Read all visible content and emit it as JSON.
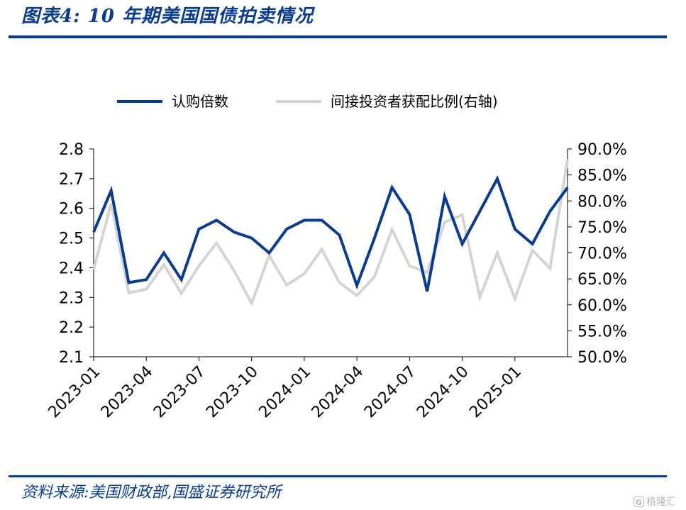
{
  "header": {
    "title": "图表4:  10 年期美国国债拍卖情况"
  },
  "footer": {
    "source": "资料来源:美国财政部,国盛证券研究所",
    "watermark": "格隆汇"
  },
  "colors": {
    "brand": "#0b3c8c",
    "series1": "#0b3c8c",
    "series2": "#d4d4d4"
  },
  "chart_data": {
    "type": "line",
    "x": [
      "2023-01",
      "2023-02",
      "2023-03",
      "2023-04",
      "2023-05",
      "2023-06",
      "2023-07",
      "2023-08",
      "2023-09",
      "2023-10",
      "2023-11",
      "2023-12",
      "2024-01",
      "2024-02",
      "2024-03",
      "2024-04",
      "2024-05",
      "2024-06",
      "2024-07",
      "2024-08",
      "2024-09",
      "2024-10",
      "2024-11",
      "2024-12",
      "2025-01",
      "2025-02",
      "2025-03",
      "2025-04"
    ],
    "xtick_labels": [
      "2023-01",
      "2023-04",
      "2023-07",
      "2023-10",
      "2024-01",
      "2024-04",
      "2024-07",
      "2024-10",
      "2025-01"
    ],
    "series": [
      {
        "name": "认购倍数",
        "axis": "left",
        "values": [
          2.52,
          2.66,
          2.35,
          2.36,
          2.45,
          2.36,
          2.53,
          2.56,
          2.52,
          2.5,
          2.45,
          2.53,
          2.56,
          2.56,
          2.51,
          2.34,
          2.5,
          2.67,
          2.58,
          2.32,
          2.64,
          2.48,
          2.59,
          2.7,
          2.53,
          2.48,
          2.59,
          2.67
        ]
      },
      {
        "name": "间接投资者获配比例(右轴)",
        "axis": "right",
        "values": [
          0.668,
          0.795,
          0.623,
          0.63,
          0.677,
          0.622,
          0.675,
          0.719,
          0.666,
          0.603,
          0.695,
          0.638,
          0.66,
          0.707,
          0.643,
          0.618,
          0.654,
          0.745,
          0.675,
          0.662,
          0.759,
          0.773,
          0.615,
          0.7,
          0.612,
          0.705,
          0.67,
          0.88
        ]
      }
    ],
    "yleft": {
      "min": 2.1,
      "max": 2.8,
      "ticks": [
        "2.1",
        "2.2",
        "2.3",
        "2.4",
        "2.5",
        "2.6",
        "2.7",
        "2.8"
      ]
    },
    "yright": {
      "min": 0.5,
      "max": 0.9,
      "ticks": [
        "50.0%",
        "55.0%",
        "60.0%",
        "65.0%",
        "70.0%",
        "75.0%",
        "80.0%",
        "85.0%",
        "90.0%"
      ]
    },
    "legend": "top",
    "grid": false
  }
}
